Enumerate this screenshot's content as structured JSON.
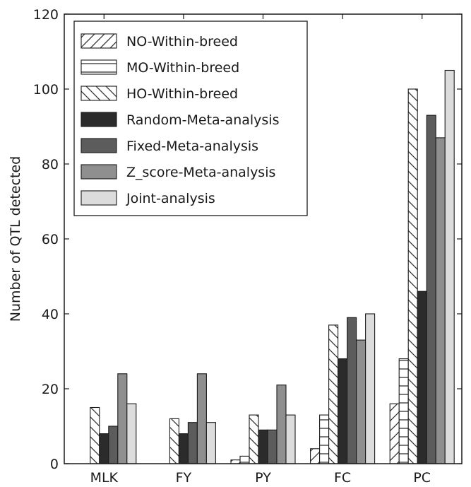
{
  "chart_data": {
    "type": "bar",
    "title": "",
    "xlabel": "",
    "ylabel": "Number of QTL detected",
    "ylim": [
      0,
      120
    ],
    "yticks": [
      0,
      20,
      40,
      60,
      80,
      100,
      120
    ],
    "grid": false,
    "legend_position": "top-left",
    "categories": [
      "MLK",
      "FY",
      "PY",
      "FC",
      "PC"
    ],
    "series": [
      {
        "name": "NO-Within-breed",
        "pattern": "diag-up",
        "color": "#ffffff",
        "values": [
          0,
          0,
          1,
          4,
          16
        ]
      },
      {
        "name": "MO-Within-breed",
        "pattern": "horizontal",
        "color": "#ffffff",
        "values": [
          0,
          0,
          2,
          13,
          28
        ]
      },
      {
        "name": "HO-Within-breed",
        "pattern": "diag-down",
        "color": "#ffffff",
        "values": [
          15,
          12,
          13,
          37,
          100
        ]
      },
      {
        "name": "Random-Meta-analysis",
        "pattern": "solid",
        "color": "#2b2b2b",
        "values": [
          8,
          8,
          9,
          28,
          46
        ]
      },
      {
        "name": "Fixed-Meta-analysis",
        "pattern": "solid",
        "color": "#5c5c5c",
        "values": [
          10,
          11,
          9,
          39,
          93
        ]
      },
      {
        "name": "Z_score-Meta-analysis",
        "pattern": "solid",
        "color": "#8f8f8f",
        "values": [
          24,
          24,
          21,
          33,
          87
        ]
      },
      {
        "name": "Joint-analysis",
        "pattern": "solid",
        "color": "#dcdcdc",
        "values": [
          16,
          11,
          13,
          40,
          105
        ]
      }
    ]
  }
}
